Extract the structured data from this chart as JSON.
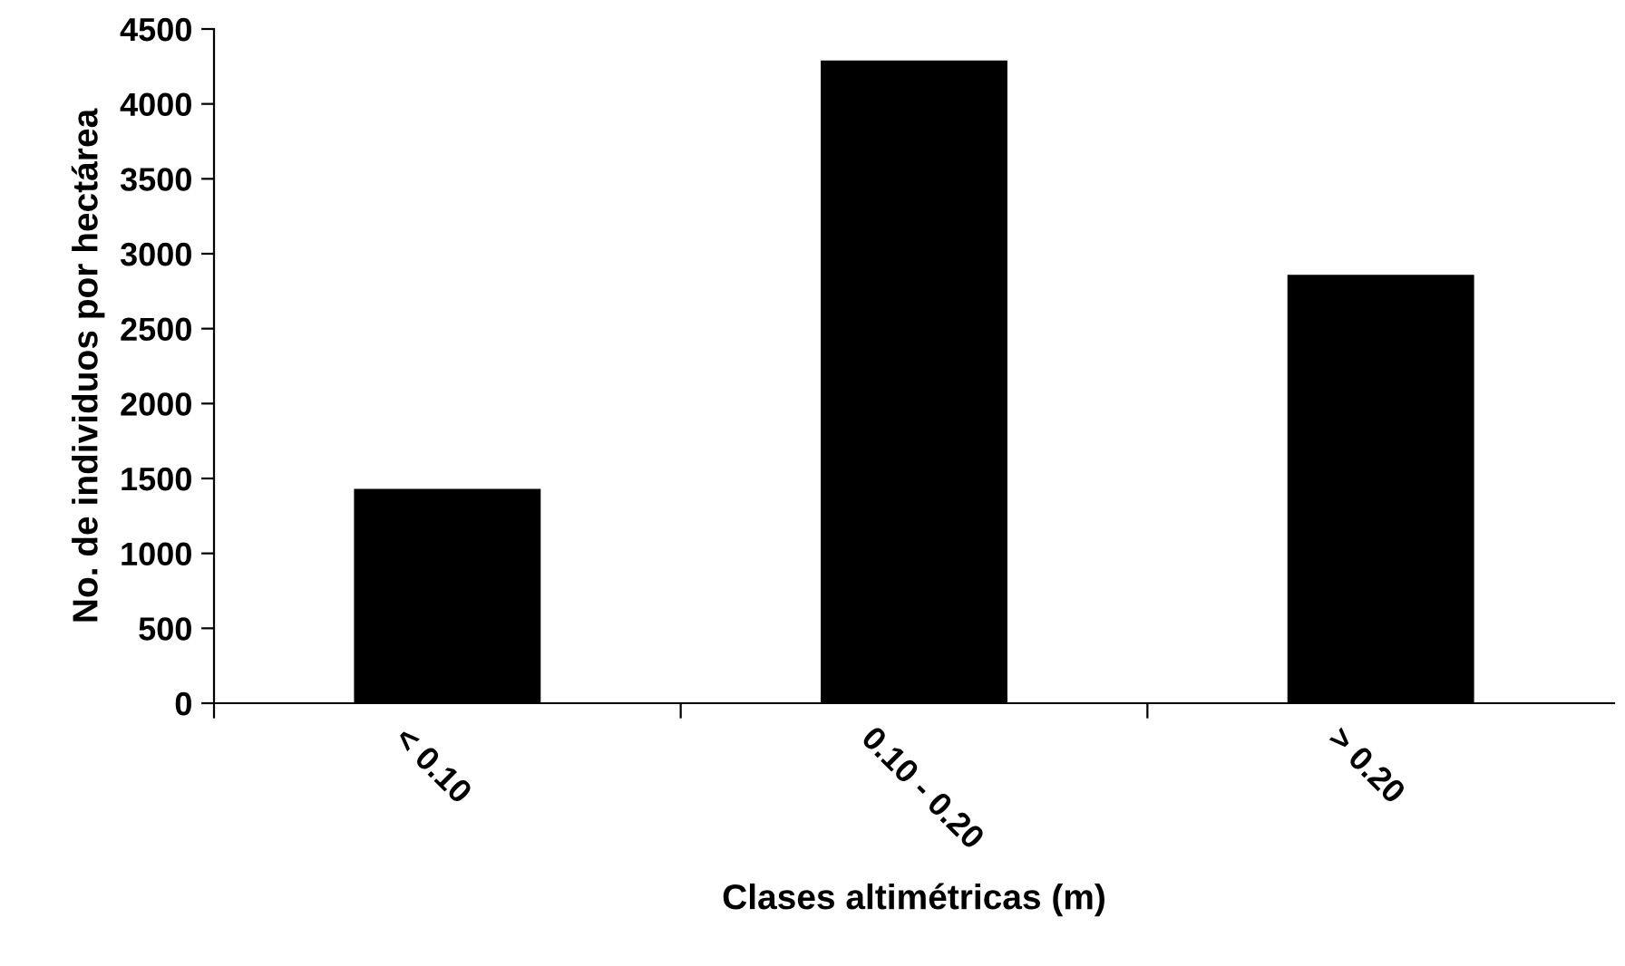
{
  "chart_data": {
    "type": "bar",
    "xlabel": "Clases altimétricas (m)",
    "ylabel": "No. de individuos por hectárea",
    "categories": [
      "< 0.10",
      "0.10 - 0.20",
      "> 0.20"
    ],
    "values": [
      1430,
      4290,
      2860
    ],
    "color": "#000000",
    "ylim": [
      0,
      4500
    ],
    "yticks": [
      0,
      500,
      1000,
      1500,
      2000,
      2500,
      3000,
      3500,
      4000,
      4500
    ],
    "grid": false,
    "legend": false
  }
}
